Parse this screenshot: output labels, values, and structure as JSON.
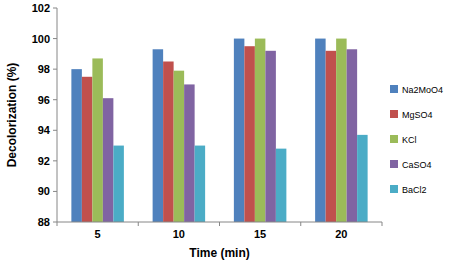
{
  "chart_data": {
    "type": "bar",
    "x_label": "Time (min)",
    "y_label": "Decolorization (%)",
    "categories": [
      "5",
      "10",
      "15",
      "20"
    ],
    "series": [
      {
        "name": "Na2MoO4",
        "color": "#4f81bd",
        "values": [
          98.0,
          99.3,
          100.0,
          100.0
        ]
      },
      {
        "name": "MgSO4",
        "color": "#c0504d",
        "values": [
          97.5,
          98.5,
          99.5,
          99.2
        ]
      },
      {
        "name": "KCl",
        "color": "#9bbb59",
        "values": [
          98.7,
          97.9,
          100.0,
          100.0
        ]
      },
      {
        "name": "CaSO4",
        "color": "#8064a2",
        "values": [
          96.1,
          97.0,
          99.2,
          99.3
        ]
      },
      {
        "name": "BaCl2",
        "color": "#4bacc6",
        "values": [
          93.0,
          93.0,
          92.8,
          93.7
        ]
      }
    ],
    "ylim": [
      88,
      102
    ],
    "yticks": [
      88,
      90,
      92,
      94,
      96,
      98,
      100,
      102
    ],
    "grid": false,
    "legend": "right"
  }
}
